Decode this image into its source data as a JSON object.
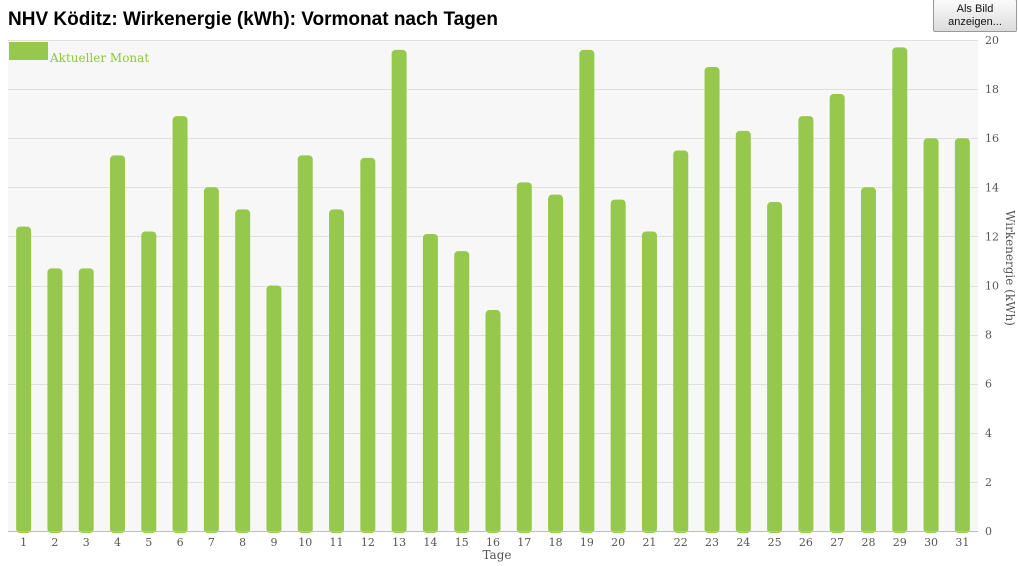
{
  "header": {
    "title": "NHV Köditz: Wirkenergie (kWh): Vormonat nach Tagen",
    "export_button_label": "Als Bild anzeigen..."
  },
  "colors": {
    "bar": "#96c84d",
    "legend_text": "#8dc63f",
    "grid": "#e0e0e0",
    "plot_background": "#f7f7f7"
  },
  "chart_data": {
    "type": "bar",
    "xlabel": "Tage",
    "ylabel": "Wirkenergie (kWh)",
    "ylim": [
      0,
      20
    ],
    "yticks": [
      0,
      2,
      4,
      6,
      8,
      10,
      12,
      14,
      16,
      18,
      20
    ],
    "y_axis_position": "right",
    "grid": true,
    "legend_position": "top-left",
    "categories": [
      "1",
      "2",
      "3",
      "4",
      "5",
      "6",
      "7",
      "8",
      "9",
      "10",
      "11",
      "12",
      "13",
      "14",
      "15",
      "16",
      "17",
      "18",
      "19",
      "20",
      "21",
      "22",
      "23",
      "24",
      "25",
      "26",
      "27",
      "28",
      "29",
      "30",
      "31"
    ],
    "series": [
      {
        "name": "Aktueller Monat",
        "values": [
          12.4,
          10.7,
          10.7,
          15.3,
          12.2,
          16.9,
          14.0,
          13.1,
          10.0,
          15.3,
          13.1,
          15.2,
          19.6,
          12.1,
          11.4,
          9.0,
          14.2,
          13.7,
          19.6,
          13.5,
          12.2,
          15.5,
          18.9,
          16.3,
          13.4,
          16.9,
          17.8,
          14.0,
          19.7,
          16.0,
          16.0
        ]
      }
    ]
  }
}
